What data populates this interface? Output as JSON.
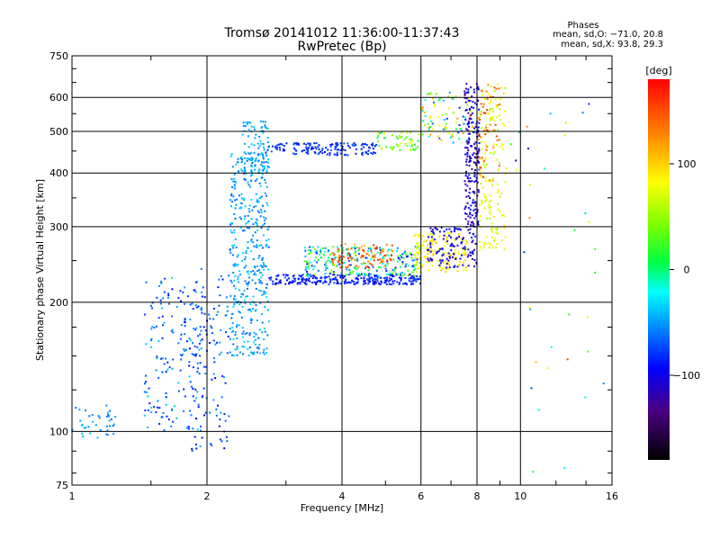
{
  "header": {
    "title": "Tromsø 20141012 11:36:00-11:37:43",
    "subtitle": "RwPretec (Bp)"
  },
  "info": {
    "label": "Phases",
    "line_o": "mean, sd,O: −71.0, 20.8",
    "line_x": "mean, sd,X:  93.8, 29.3"
  },
  "colorbar": {
    "unit": "[deg]",
    "ticks": [
      {
        "value": 100,
        "label": "100"
      },
      {
        "value": 0,
        "label": "0"
      },
      {
        "value": -100,
        "label": "−100"
      }
    ],
    "min": -180,
    "max": 180
  },
  "chart_data": {
    "type": "scatter",
    "xlabel": "Frequency [MHz]",
    "ylabel": "Stationary phase Virtual Height [km]",
    "xscale": "log",
    "yscale": "log",
    "xlim": [
      1,
      16
    ],
    "ylim": [
      75,
      750
    ],
    "xticks": [
      {
        "value": 1,
        "label": "1"
      },
      {
        "value": 2,
        "label": "2"
      },
      {
        "value": 4,
        "label": "4"
      },
      {
        "value": 6,
        "label": "6"
      },
      {
        "value": 8,
        "label": "8"
      },
      {
        "value": 10,
        "label": "10"
      },
      {
        "value": 16,
        "label": "16"
      }
    ],
    "yticks": [
      {
        "value": 75,
        "label": "75"
      },
      {
        "value": 100,
        "label": "100"
      },
      {
        "value": 200,
        "label": "200"
      },
      {
        "value": 300,
        "label": "300"
      },
      {
        "value": 400,
        "label": "400"
      },
      {
        "value": 500,
        "label": "500"
      },
      {
        "value": 600,
        "label": "600"
      },
      {
        "value": 750,
        "label": "750"
      }
    ],
    "grid": true,
    "color_scale": "phase (deg), rainbow: -180 black, -100 blue, 0 green, 100 yellow, 180 red",
    "clusters": [
      {
        "f": [
          1.0,
          1.25
        ],
        "h": [
          95,
          115
        ],
        "phase": [
          -70,
          -40
        ],
        "n": 40
      },
      {
        "f": [
          1.45,
          1.95
        ],
        "h": [
          100,
          230
        ],
        "phase": [
          -100,
          -40
        ],
        "n": 170
      },
      {
        "f": [
          1.85,
          2.25
        ],
        "h": [
          90,
          240
        ],
        "phase": [
          -100,
          -50
        ],
        "n": 110
      },
      {
        "f": [
          2.25,
          2.75
        ],
        "h": [
          150,
          450
        ],
        "phase": [
          -70,
          -35
        ],
        "n": 420
      },
      {
        "f": [
          2.4,
          2.75
        ],
        "h": [
          400,
          530
        ],
        "phase": [
          -60,
          -40
        ],
        "n": 80
      },
      {
        "f": [
          2.7,
          4.8
        ],
        "h": [
          440,
          470
        ],
        "phase": [
          -100,
          -70
        ],
        "n": 150
      },
      {
        "f": [
          4.8,
          6.0
        ],
        "h": [
          450,
          500
        ],
        "phase": [
          -10,
          100
        ],
        "n": 55
      },
      {
        "f": [
          6.0,
          7.9
        ],
        "h": [
          470,
          620
        ],
        "phase": [
          -100,
          140
        ],
        "n": 90
      },
      {
        "f": [
          2.75,
          6.0
        ],
        "h": [
          220,
          232
        ],
        "phase": [
          -110,
          -75
        ],
        "n": 260
      },
      {
        "f": [
          3.3,
          6.0
        ],
        "h": [
          230,
          270
        ],
        "phase": [
          -100,
          50
        ],
        "n": 260
      },
      {
        "f": [
          3.8,
          5.2
        ],
        "h": [
          240,
          275
        ],
        "phase": [
          120,
          175
        ],
        "n": 90
      },
      {
        "f": [
          5.8,
          7.6
        ],
        "h": [
          235,
          290
        ],
        "phase": [
          80,
          120
        ],
        "n": 150
      },
      {
        "f": [
          6.2,
          8.0
        ],
        "h": [
          240,
          300
        ],
        "phase": [
          -130,
          -90
        ],
        "n": 120
      },
      {
        "f": [
          7.5,
          8.1
        ],
        "h": [
          300,
          650
        ],
        "phase": [
          -140,
          -90
        ],
        "n": 200
      },
      {
        "f": [
          8.1,
          9.3
        ],
        "h": [
          260,
          650
        ],
        "phase": [
          60,
          110
        ],
        "n": 160
      },
      {
        "f": [
          8.0,
          9.0
        ],
        "h": [
          380,
          650
        ],
        "phase": [
          130,
          170
        ],
        "n": 50
      },
      {
        "f": [
          9.5,
          15.5
        ],
        "h": [
          80,
          620
        ],
        "phase": [
          -150,
          160
        ],
        "n": 35
      }
    ]
  }
}
